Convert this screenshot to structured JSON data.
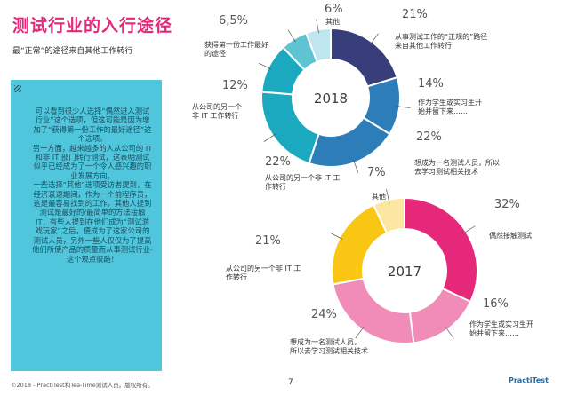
{
  "header": {
    "title": "测试行业的入行途径",
    "subtitle": "最“正常”的途径来自其他工作转行"
  },
  "sidebar": {
    "text": "可以看到很少人选择“偶然进入测试行业”这个选项，但这可能是因为增加了“获得第一份工作的最好途径”这个选项。\n另一方面，越来越多的人从公司的 IT 和非 IT 部门转行测试，这表明测试似乎已经成为了一个令人感兴趣的职业发展方向。\n一些选择“其他”选项受访者提到，在经济衰退期间，作为一个前程序员，这是最容易找到的工作。其他人提到测试是最好的/最简单的方法接触 IT，有些人提到在他们成为“测试游戏玩家”之后，便成为了这家公司的测试人员，另外一些人仅仅为了提高他们所使产品的质量而从事测试行业-这个观点很酷！"
  },
  "footer": {
    "copyright": "©2018 - PractiTest和Tea-Time测试人员。版权所有。",
    "page": "7",
    "logo": "PractiTest"
  },
  "colors": {
    "navy": "#383e79",
    "blue": "#2d7eb8",
    "teal": "#1aa9bf",
    "lightteal": "#5ec4d2",
    "palecyan": "#bfe6ee",
    "pink": "#e6287a",
    "lightpink": "#f08cb7",
    "yellow": "#f9c614",
    "paleyellow": "#fbe6a2",
    "sidebar": "#4fc6dc"
  },
  "chart_data": [
    {
      "type": "pie",
      "year": "2018",
      "slices": [
        {
          "pct_label": "21%",
          "value": 21,
          "label_lines": [
            "从事测试工作的“正规的”路径",
            "来自其他工作转行"
          ],
          "color": "navy"
        },
        {
          "pct_label": "14%",
          "value": 14,
          "label_lines": [
            "作为学生或实习生开",
            "始并留下来……"
          ],
          "color": "blue"
        },
        {
          "pct_label": "22%",
          "value": 22,
          "label_lines": [
            "想成为一名测试人员，所以",
            "去学习测试相关技术"
          ],
          "color": "blue"
        },
        {
          "pct_label": "22%",
          "value": 22,
          "label_lines": [
            "从公司的另一个非 IT 工",
            "作转行"
          ],
          "color": "teal"
        },
        {
          "pct_label": "12%",
          "value": 12,
          "label_lines": [
            "从公司的另一个",
            "非 IT 工作转行"
          ],
          "color": "teal"
        },
        {
          "pct_label": "6,5%",
          "value": 6.5,
          "label_lines": [
            "获得第一份工作最好",
            "的途径"
          ],
          "color": "lightteal"
        },
        {
          "pct_label": "6%",
          "value": 6,
          "label_lines": [
            "其他"
          ],
          "color": "palecyan"
        }
      ]
    },
    {
      "type": "pie",
      "year": "2017",
      "slices": [
        {
          "pct_label": "32%",
          "value": 32,
          "label_lines": [
            "偶然接触测试"
          ],
          "color": "pink"
        },
        {
          "pct_label": "16%",
          "value": 16,
          "label_lines": [
            "作为学生或实习生开",
            "始并留下来……"
          ],
          "color": "lightpink"
        },
        {
          "pct_label": "24%",
          "value": 24,
          "label_lines": [
            "想成为一名测试人员，",
            "所以去学习测试相关技术"
          ],
          "color": "lightpink"
        },
        {
          "pct_label": "21%",
          "value": 21,
          "label_lines": [
            "从公司的另一个非 IT 工",
            "作转行"
          ],
          "color": "yellow"
        },
        {
          "pct_label": "7%",
          "value": 7,
          "label_lines": [
            "其他"
          ],
          "color": "paleyellow"
        }
      ]
    }
  ]
}
